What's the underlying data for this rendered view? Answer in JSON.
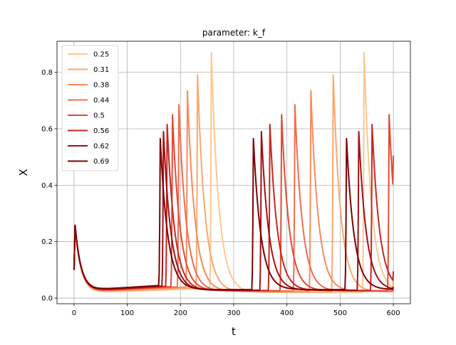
{
  "chart_data": {
    "type": "line",
    "title": "parameter: k_f",
    "xlabel": "t",
    "ylabel": "X",
    "xlim": [
      -32,
      632
    ],
    "ylim": [
      -0.02,
      0.91
    ],
    "xticks": [
      0,
      100,
      200,
      300,
      400,
      500,
      600
    ],
    "yticks": [
      0.0,
      0.2,
      0.4,
      0.6,
      0.8
    ],
    "grid": true,
    "legend_position": "top-left",
    "series": [
      {
        "name": "0.25",
        "color": "#fdc78f",
        "initial_peak": 0.258,
        "baseline": 0.02,
        "peaks": [
          {
            "t": 258,
            "h": 0.87
          },
          {
            "t": 545,
            "h": 0.87
          }
        ],
        "end_value": 0.06
      },
      {
        "name": "0.31",
        "color": "#fca76c",
        "initial_peak": 0.258,
        "baseline": 0.022,
        "peaks": [
          {
            "t": 232,
            "h": 0.79
          },
          {
            "t": 487,
            "h": 0.79
          }
        ],
        "end_value": 0.09
      },
      {
        "name": "0.38",
        "color": "#fa8a5a",
        "initial_peak": 0.258,
        "baseline": 0.024,
        "peaks": [
          {
            "t": 213,
            "h": 0.735
          },
          {
            "t": 445,
            "h": 0.735
          }
        ],
        "end_value": 0.035
      },
      {
        "name": "0.44",
        "color": "#f26c4e",
        "initial_peak": 0.258,
        "baseline": 0.025,
        "peaks": [
          {
            "t": 197,
            "h": 0.685
          },
          {
            "t": 415,
            "h": 0.685
          }
        ],
        "end_value": 0.04
      },
      {
        "name": "0.5",
        "color": "#e34a33",
        "initial_peak": 0.258,
        "baseline": 0.026,
        "peaks": [
          {
            "t": 185,
            "h": 0.65
          },
          {
            "t": 390,
            "h": 0.65
          },
          {
            "t": 592,
            "h": 0.65
          }
        ],
        "end_value": 0.505
      },
      {
        "name": "0.56",
        "color": "#c72822",
        "initial_peak": 0.258,
        "baseline": 0.027,
        "peaks": [
          {
            "t": 175,
            "h": 0.615
          },
          {
            "t": 368,
            "h": 0.615
          },
          {
            "t": 560,
            "h": 0.615
          }
        ],
        "end_value": 0.095
      },
      {
        "name": "0.62",
        "color": "#a30f15",
        "initial_peak": 0.258,
        "baseline": 0.028,
        "peaks": [
          {
            "t": 168,
            "h": 0.59
          },
          {
            "t": 352,
            "h": 0.59
          },
          {
            "t": 535,
            "h": 0.59
          }
        ],
        "end_value": 0.04
      },
      {
        "name": "0.69",
        "color": "#7f0000",
        "initial_peak": 0.258,
        "baseline": 0.03,
        "peaks": [
          {
            "t": 162,
            "h": 0.565
          },
          {
            "t": 337,
            "h": 0.565
          },
          {
            "t": 512,
            "h": 0.565
          }
        ],
        "end_value": 0.03
      }
    ]
  }
}
